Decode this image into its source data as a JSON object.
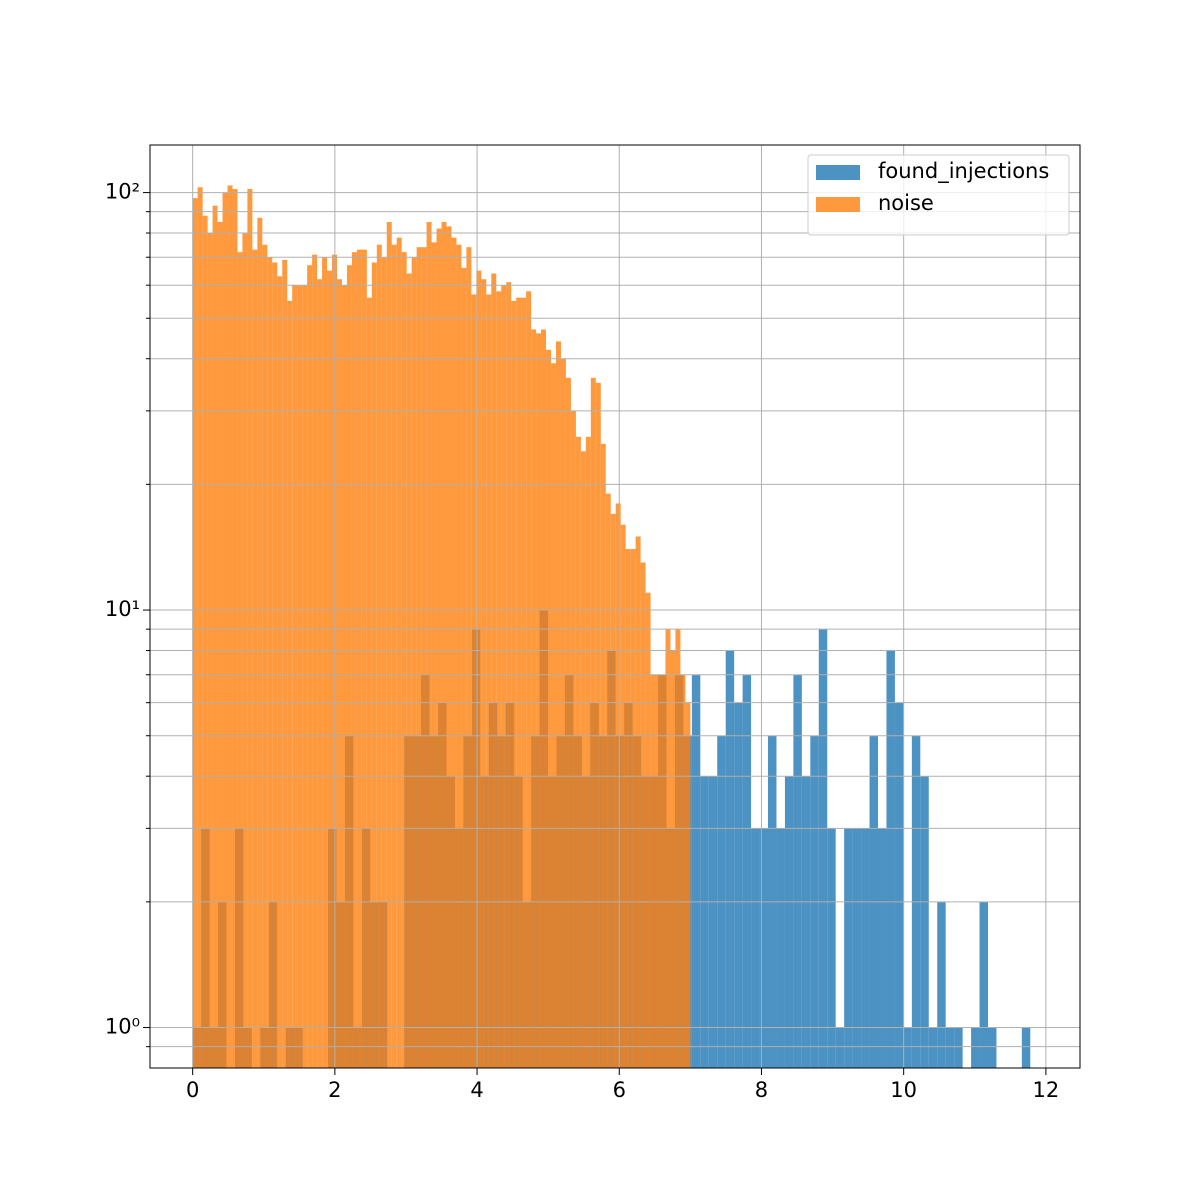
{
  "chart_data": {
    "type": "histogram",
    "log_y": true,
    "grid": true,
    "legend": "upper right",
    "alpha": 0.8,
    "xlim": [
      -0.6,
      12.48
    ],
    "xticks": [
      0,
      2,
      4,
      6,
      8,
      10,
      12
    ],
    "ylim": [
      0.8,
      130
    ],
    "yticks": [
      {
        "value": 1,
        "label": "10⁰"
      },
      {
        "value": 10,
        "label": "10¹"
      },
      {
        "value": 100,
        "label": "10²"
      }
    ],
    "yminorticks": [
      0.9,
      2,
      3,
      4,
      5,
      6,
      7,
      8,
      9,
      20,
      30,
      40,
      50,
      60,
      70,
      80,
      90
    ],
    "series": [
      {
        "name": "found_injections",
        "color": "#1f77b4",
        "bins": [
          0,
          0.119,
          0.238,
          0.357,
          0.476,
          0.595,
          0.714,
          0.833,
          0.952,
          1.071,
          1.19,
          1.309,
          1.428,
          1.547,
          1.666,
          1.785,
          1.904,
          2.023,
          2.142,
          2.261,
          2.38,
          2.499,
          2.618,
          2.737,
          2.856,
          2.975,
          3.094,
          3.213,
          3.332,
          3.451,
          3.57,
          3.689,
          3.808,
          3.927,
          4.046,
          4.165,
          4.284,
          4.403,
          4.522,
          4.641,
          4.76,
          4.879,
          4.998,
          5.117,
          5.236,
          5.355,
          5.474,
          5.593,
          5.712,
          5.831,
          5.95,
          6.069,
          6.188,
          6.307,
          6.426,
          6.545,
          6.664,
          6.783,
          6.902,
          7.021,
          7.14,
          7.259,
          7.378,
          7.497,
          7.616,
          7.735,
          7.854,
          7.973,
          8.092,
          8.211,
          8.33,
          8.449,
          8.568,
          8.687,
          8.806,
          8.925,
          9.044,
          9.163,
          9.282,
          9.401,
          9.52,
          9.639,
          9.758,
          9.877,
          9.996,
          10.115,
          10.234,
          10.353,
          10.472,
          10.591,
          10.71,
          10.829,
          10.948,
          11.067,
          11.186,
          11.305,
          11.424,
          11.543,
          11.662,
          11.781,
          11.9
        ],
        "values": [
          1,
          3,
          1,
          2,
          0,
          3,
          1,
          0,
          1,
          2,
          0,
          1,
          1,
          0,
          0,
          0,
          3,
          2,
          5,
          1,
          3,
          2,
          2,
          0,
          0,
          5,
          5,
          7,
          5,
          6,
          4,
          3,
          5,
          9,
          4,
          6,
          5,
          6,
          4,
          2,
          5,
          10,
          4,
          5,
          7,
          5,
          4,
          6,
          5,
          8,
          5,
          6,
          5,
          4,
          4,
          7,
          3,
          7,
          5,
          7,
          4,
          4,
          5,
          8,
          6,
          7,
          3,
          3,
          5,
          3,
          4,
          7,
          4,
          5,
          9,
          3,
          1,
          3,
          3,
          3,
          5,
          3,
          8,
          6,
          1,
          5,
          4,
          1,
          2,
          1,
          1,
          0,
          1,
          2,
          1,
          0,
          0,
          0,
          1,
          0
        ]
      },
      {
        "name": "noise",
        "color": "#ff7f0e",
        "bins": [
          0,
          0.07,
          0.14,
          0.21,
          0.28,
          0.35,
          0.42,
          0.49,
          0.56,
          0.63,
          0.7,
          0.77,
          0.84,
          0.91,
          0.98,
          1.05,
          1.12,
          1.19,
          1.26,
          1.33,
          1.4,
          1.47,
          1.54,
          1.61,
          1.68,
          1.75,
          1.82,
          1.89,
          1.96,
          2.03,
          2.1,
          2.17,
          2.24,
          2.31,
          2.38,
          2.45,
          2.52,
          2.59,
          2.66,
          2.73,
          2.8,
          2.87,
          2.94,
          3.01,
          3.08,
          3.15,
          3.22,
          3.29,
          3.36,
          3.43,
          3.5,
          3.57,
          3.64,
          3.71,
          3.78,
          3.85,
          3.92,
          3.99,
          4.06,
          4.13,
          4.2,
          4.27,
          4.34,
          4.41,
          4.48,
          4.55,
          4.62,
          4.69,
          4.76,
          4.83,
          4.9,
          4.97,
          5.04,
          5.11,
          5.18,
          5.25,
          5.32,
          5.39,
          5.46,
          5.53,
          5.6,
          5.67,
          5.74,
          5.81,
          5.88,
          5.95,
          6.02,
          6.09,
          6.16,
          6.23,
          6.3,
          6.37,
          6.44,
          6.51,
          6.58,
          6.65,
          6.72,
          6.79,
          6.86,
          6.93,
          7.0
        ],
        "values": [
          97,
          103,
          88,
          80,
          93,
          85,
          100,
          104,
          102,
          72,
          80,
          102,
          73,
          87,
          75,
          70,
          68,
          63,
          69,
          55,
          60,
          60,
          60,
          67,
          71,
          62,
          70,
          65,
          71,
          62,
          60,
          67,
          72,
          73,
          73,
          56,
          68,
          75,
          70,
          85,
          75,
          78,
          72,
          64,
          70,
          74,
          74,
          85,
          76,
          82,
          85,
          83,
          78,
          75,
          66,
          74,
          57,
          65,
          62,
          57,
          64,
          58,
          60,
          61,
          55,
          56,
          56,
          58,
          47,
          46,
          47,
          42,
          39,
          44,
          40,
          36,
          30,
          26,
          24,
          26,
          36,
          35,
          25,
          19,
          17,
          18,
          16,
          14,
          14,
          15,
          13,
          11,
          7,
          7,
          7,
          9,
          8,
          9,
          7,
          6
        ]
      }
    ]
  }
}
